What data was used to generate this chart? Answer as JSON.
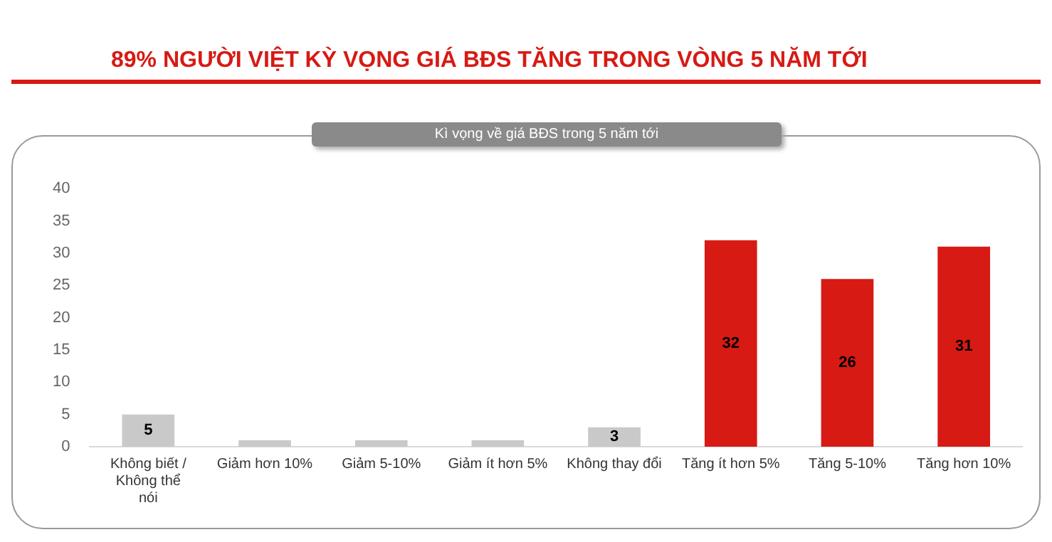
{
  "chart_data": {
    "type": "bar",
    "title": "89% NGƯỜI VIỆT KỲ VỌNG GIÁ BĐS TĂNG TRONG VÒNG 5 NĂM TỚI",
    "subtitle": "Kì vọng về giá BĐS trong 5 năm tới",
    "categories": [
      "Không biết / Không thể nói",
      "Giảm hơn 10%",
      "Giảm 5-10%",
      "Giảm ít hơn 5%",
      "Không thay đổi",
      "Tăng ít hơn 5%",
      "Tăng 5-10%",
      "Tăng hơn 10%"
    ],
    "values": [
      5,
      1,
      1,
      1,
      3,
      32,
      26,
      31
    ],
    "value_labels": [
      "5",
      null,
      null,
      null,
      "3",
      "32",
      "26",
      "31"
    ],
    "colors": [
      "#c9c9c9",
      "#c9c9c9",
      "#c9c9c9",
      "#c9c9c9",
      "#c9c9c9",
      "#d71a14",
      "#d71a14",
      "#d71a14"
    ],
    "ylim": [
      0,
      40
    ],
    "yticks": [
      0,
      5,
      10,
      15,
      20,
      25,
      30,
      35,
      40
    ],
    "grid": false,
    "legend": false
  }
}
